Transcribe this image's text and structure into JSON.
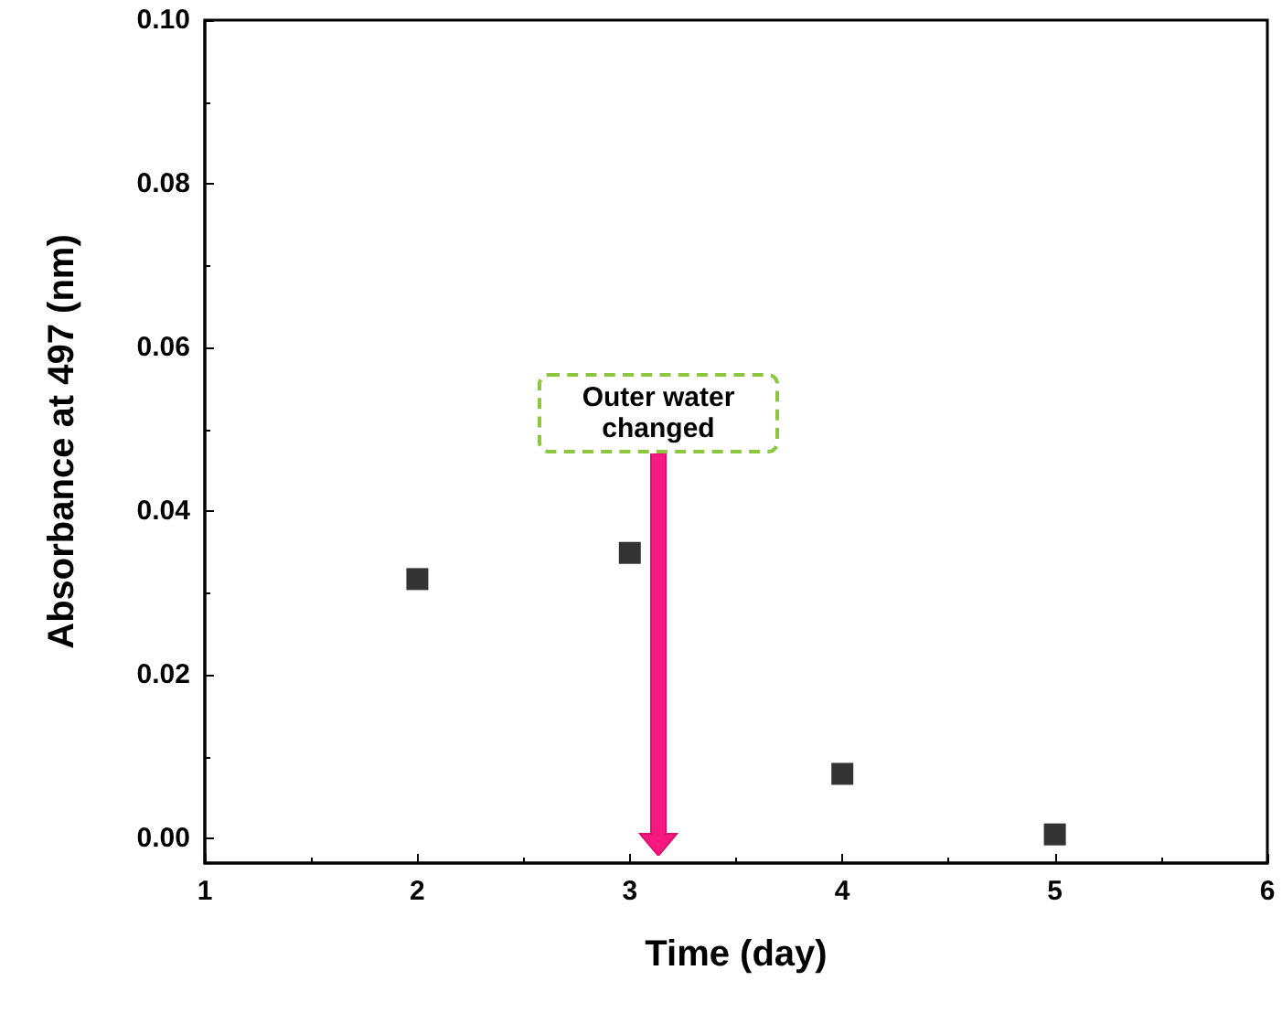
{
  "chart_data": {
    "type": "scatter",
    "xlabel": "Time (day)",
    "ylabel": "Absorbance at 497 (nm)",
    "x": [
      2,
      3,
      4,
      5
    ],
    "series": [
      {
        "color": "#000000",
        "values": [
          0.0317,
          0.0349,
          0.0079,
          0.0005
        ]
      }
    ],
    "marker": "square",
    "xlim": [
      1,
      6
    ],
    "xticks": [
      1,
      2,
      3,
      4,
      5,
      6
    ],
    "ylim": [
      -0.003,
      0.1
    ],
    "yticks": [
      {
        "value": 0,
        "label": "0.00"
      },
      {
        "value": 0.02,
        "label": "0.02"
      },
      {
        "value": 0.04,
        "label": "0.04"
      },
      {
        "value": 0.06,
        "label": "0.06"
      },
      {
        "value": 0.08,
        "label": "0.08"
      },
      {
        "value": 0.1,
        "label": "0.10"
      }
    ],
    "annotations": [
      "Outer water changed"
    ]
  }
}
